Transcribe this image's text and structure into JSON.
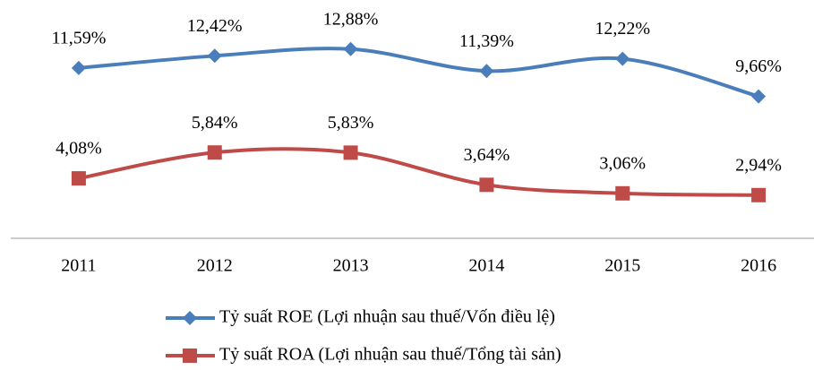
{
  "chart_data": {
    "type": "line",
    "categories": [
      "2011",
      "2012",
      "2013",
      "2014",
      "2015",
      "2016"
    ],
    "series": [
      {
        "name": "Tỷ suất ROE (Lợi nhuận sau thuế/Vốn điều lệ)",
        "color": "#4a7ebb",
        "marker": "diamond",
        "values": [
          11.59,
          12.42,
          12.88,
          11.39,
          12.22,
          9.66
        ],
        "value_labels": [
          "11,59%",
          "12,42%",
          "12,88%",
          "11,39%",
          "12,22%",
          "9,66%"
        ]
      },
      {
        "name": "Tỷ suất ROA (Lợi nhuận sau thuế/Tổng tài sản)",
        "color": "#be4b48",
        "marker": "square",
        "values": [
          4.08,
          5.84,
          5.83,
          3.64,
          3.06,
          2.94
        ],
        "value_labels": [
          "4,08%",
          "5,84%",
          "5,83%",
          "3,64%",
          "3,06%",
          "2,94%"
        ]
      }
    ],
    "ylim": [
      0,
      16
    ],
    "smooth": true,
    "legend": "bottom"
  }
}
